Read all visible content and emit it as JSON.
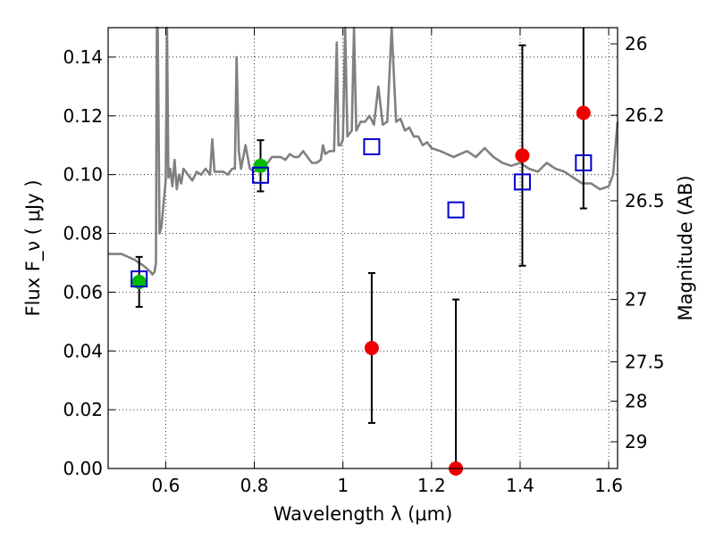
{
  "chart_data": {
    "type": "scatter",
    "xlabel": "Wavelength  λ (μm)",
    "ylabel_left": "Flux  F_ν  ( μJy )",
    "ylabel_right": "Magnitude (AB)",
    "xlim": [
      0.47,
      1.62
    ],
    "ylim": [
      0.0,
      0.15
    ],
    "grid": true,
    "grid_style": "dotted",
    "x_ticks": [
      {
        "value": 0.6,
        "label": "0.6"
      },
      {
        "value": 0.8,
        "label": "0.8"
      },
      {
        "value": 1.0,
        "label": "1"
      },
      {
        "value": 1.2,
        "label": "1.2"
      },
      {
        "value": 1.4,
        "label": "1.4"
      },
      {
        "value": 1.6,
        "label": "1.6"
      }
    ],
    "y_ticks": [
      {
        "value": 0.0,
        "label": "0.00"
      },
      {
        "value": 0.02,
        "label": "0.02"
      },
      {
        "value": 0.04,
        "label": "0.04"
      },
      {
        "value": 0.06,
        "label": "0.06"
      },
      {
        "value": 0.08,
        "label": "0.08"
      },
      {
        "value": 0.1,
        "label": "0.10"
      },
      {
        "value": 0.12,
        "label": "0.12"
      },
      {
        "value": 0.14,
        "label": "0.14"
      }
    ],
    "right_ticks": [
      {
        "flux": 0.1445,
        "label": "26"
      },
      {
        "flux": 0.1202,
        "label": "26.2"
      },
      {
        "flux": 0.0911,
        "label": "26.5"
      },
      {
        "flux": 0.0575,
        "label": "27"
      },
      {
        "flux": 0.0363,
        "label": "27.5"
      },
      {
        "flux": 0.0229,
        "label": "28"
      },
      {
        "flux": 0.0091,
        "label": "29"
      }
    ],
    "series": [
      {
        "kind": "line",
        "color": "#808080",
        "x": [
          0.47,
          0.5,
          0.53,
          0.55,
          0.565,
          0.57,
          0.575,
          0.578,
          0.58,
          0.582,
          0.586,
          0.59,
          0.595,
          0.6,
          0.603,
          0.606,
          0.61,
          0.615,
          0.62,
          0.625,
          0.63,
          0.635,
          0.64,
          0.65,
          0.66,
          0.67,
          0.68,
          0.69,
          0.7,
          0.705,
          0.71,
          0.72,
          0.73,
          0.74,
          0.75,
          0.756,
          0.76,
          0.765,
          0.77,
          0.78,
          0.79,
          0.8,
          0.81,
          0.82,
          0.83,
          0.84,
          0.85,
          0.86,
          0.87,
          0.88,
          0.89,
          0.9,
          0.91,
          0.92,
          0.93,
          0.94,
          0.95,
          0.955,
          0.96,
          0.97,
          0.98,
          0.986,
          0.99,
          0.995,
          1.0,
          1.005,
          1.01,
          1.02,
          1.025,
          1.03,
          1.04,
          1.05,
          1.06,
          1.07,
          1.08,
          1.09,
          1.1,
          1.11,
          1.12,
          1.13,
          1.14,
          1.15,
          1.16,
          1.17,
          1.18,
          1.19,
          1.2,
          1.22,
          1.25,
          1.28,
          1.3,
          1.32,
          1.34,
          1.36,
          1.38,
          1.4,
          1.42,
          1.44,
          1.46,
          1.48,
          1.5,
          1.52,
          1.54,
          1.56,
          1.58,
          1.6,
          1.61,
          1.62
        ],
        "y": [
          0.073,
          0.073,
          0.071,
          0.069,
          0.067,
          0.066,
          0.067,
          0.07,
          0.15,
          0.15,
          0.08,
          0.082,
          0.09,
          0.098,
          0.15,
          0.099,
          0.102,
          0.096,
          0.105,
          0.095,
          0.1,
          0.097,
          0.102,
          0.1,
          0.098,
          0.101,
          0.1,
          0.102,
          0.1,
          0.112,
          0.101,
          0.101,
          0.101,
          0.1,
          0.102,
          0.102,
          0.14,
          0.108,
          0.102,
          0.11,
          0.102,
          0.101,
          0.102,
          0.103,
          0.104,
          0.106,
          0.106,
          0.106,
          0.105,
          0.107,
          0.106,
          0.106,
          0.108,
          0.106,
          0.104,
          0.104,
          0.105,
          0.11,
          0.107,
          0.108,
          0.108,
          0.145,
          0.11,
          0.11,
          0.112,
          0.15,
          0.113,
          0.115,
          0.15,
          0.115,
          0.118,
          0.118,
          0.12,
          0.117,
          0.13,
          0.117,
          0.118,
          0.15,
          0.118,
          0.119,
          0.115,
          0.116,
          0.113,
          0.113,
          0.11,
          0.111,
          0.109,
          0.108,
          0.106,
          0.108,
          0.106,
          0.109,
          0.106,
          0.104,
          0.103,
          0.104,
          0.102,
          0.101,
          0.104,
          0.102,
          0.101,
          0.099,
          0.097,
          0.097,
          0.095,
          0.096,
          0.1,
          0.118
        ]
      },
      {
        "kind": "points",
        "marker": "circle",
        "color": "#00bb00",
        "points": [
          {
            "x": 0.54,
            "y": 0.0635,
            "err": 0.0085
          },
          {
            "x": 0.814,
            "y": 0.103,
            "err": 0.0087
          }
        ]
      },
      {
        "kind": "points",
        "marker": "circle",
        "color": "#ee0000",
        "points": [
          {
            "x": 1.065,
            "y": 0.041,
            "err": 0.0255
          },
          {
            "x": 1.255,
            "y": 0.0,
            "err": 0.0575
          },
          {
            "x": 1.405,
            "y": 0.1065,
            "err": 0.0375
          },
          {
            "x": 1.543,
            "y": 0.121,
            "err": 0.0325
          }
        ]
      },
      {
        "kind": "points",
        "marker": "open-square",
        "color": "#0000cc",
        "points": [
          {
            "x": 0.54,
            "y": 0.0645
          },
          {
            "x": 0.814,
            "y": 0.0998
          },
          {
            "x": 1.065,
            "y": 0.1095
          },
          {
            "x": 1.255,
            "y": 0.088
          },
          {
            "x": 1.405,
            "y": 0.0975
          },
          {
            "x": 1.543,
            "y": 0.104
          }
        ]
      }
    ]
  }
}
